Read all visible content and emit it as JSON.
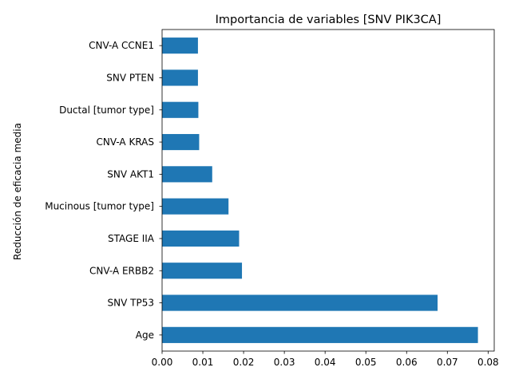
{
  "chart_data": {
    "type": "bar",
    "orientation": "horizontal",
    "title": "Importancia de variables [SNV PIK3CA]",
    "xlabel": "",
    "ylabel": "Reducción de eficacia media",
    "categories": [
      "Age",
      "SNV TP53",
      "CNV-A ERBB2",
      "STAGE IIA",
      "Mucinous [tumor type]",
      "SNV AKT1",
      "CNV-A KRAS",
      "Ductal [tumor type]",
      "SNV PTEN",
      "CNV-A CCNE1"
    ],
    "values": [
      0.0775,
      0.0676,
      0.0196,
      0.0189,
      0.0163,
      0.0123,
      0.0091,
      0.0089,
      0.0088,
      0.0088
    ],
    "xlim": [
      0,
      0.0815
    ],
    "xticks": [
      "0.00",
      "0.01",
      "0.02",
      "0.03",
      "0.04",
      "0.05",
      "0.06",
      "0.07",
      "0.08"
    ],
    "bar_color": "#1f77b4",
    "grid": false
  }
}
